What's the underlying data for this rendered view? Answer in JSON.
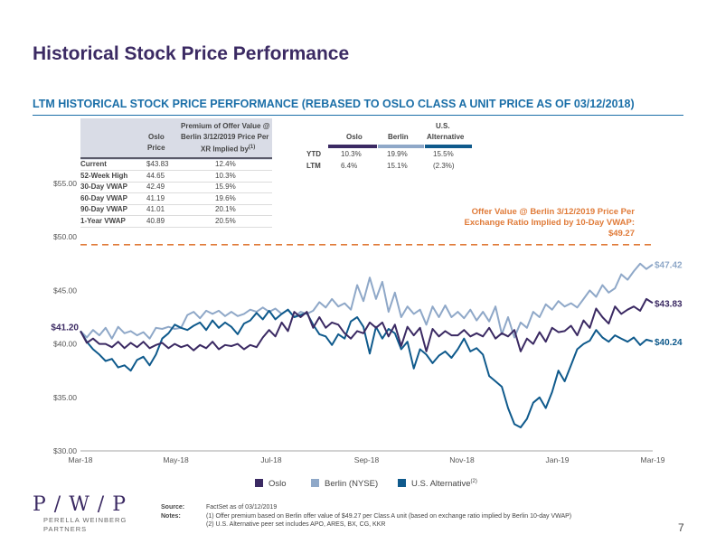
{
  "title": "Historical Stock Price Performance",
  "subtitle": "LTM HISTORICAL STOCK PRICE PERFORMANCE (REBASED TO OSLO CLASS A UNIT PRICE AS OF 03/12/2018)",
  "premium_table": {
    "col_oslo": [
      "Oslo",
      "Price"
    ],
    "col_premium": [
      "Premium of Offer Value @",
      "Berlin 3/12/2019 Price Per",
      "XR Implied by"
    ],
    "col_premium_sup": "(1)",
    "rows": [
      {
        "label": "Current",
        "price": "$43.83",
        "premium": "12.4%"
      },
      {
        "label": "52-Week High",
        "price": "44.65",
        "premium": "10.3%"
      },
      {
        "label": "30-Day VWAP",
        "price": "42.49",
        "premium": "15.9%"
      },
      {
        "label": "60-Day VWAP",
        "price": "41.19",
        "premium": "19.6%"
      },
      {
        "label": "90-Day VWAP",
        "price": "41.01",
        "premium": "20.1%"
      },
      {
        "label": "1-Year VWAP",
        "price": "40.89",
        "premium": "20.5%"
      }
    ]
  },
  "returns_table": {
    "headers": [
      "Oslo",
      "Berlin",
      "U.S.",
      "Alternative"
    ],
    "rows": [
      {
        "label": "YTD",
        "oslo": "10.3%",
        "berlin": "19.9%",
        "alt": "15.5%"
      },
      {
        "label": "LTM",
        "oslo": "6.4%",
        "berlin": "15.1%",
        "alt": "(2.3%)"
      }
    ]
  },
  "offer": {
    "line1": "Offer Value @ Berlin 3/12/2019 Price Per",
    "line2": "Exchange Ratio Implied by 10-Day VWAP:",
    "value_label": "$49.27",
    "value": 49.27
  },
  "legend": {
    "oslo": "Oslo",
    "berlin": "Berlin (NYSE)",
    "alt": "U.S. Alternative",
    "alt_sup": "(2)"
  },
  "colors": {
    "oslo": "#3b2a63",
    "berlin": "#8fa8c8",
    "alt": "#0f5a8c",
    "offer": "#e07b39",
    "title": "#3b2a63",
    "accent": "#1b6fa8"
  },
  "chart_data": {
    "type": "line",
    "x_ticks": [
      "Mar-18",
      "May-18",
      "Jul-18",
      "Sep-18",
      "Nov-18",
      "Jan-19",
      "Mar-19"
    ],
    "y_ticks": [
      "$30.00",
      "$35.00",
      "$40.00",
      "$45.00",
      "$50.00",
      "$55.00"
    ],
    "y_tick_values": [
      30,
      35,
      40,
      45,
      50,
      55
    ],
    "ylim": [
      30,
      55
    ],
    "start_label": "$41.20",
    "start_value": 41.2,
    "end_labels": {
      "berlin": "$47.42",
      "oslo": "$43.83",
      "alt": "$40.24"
    },
    "series": [
      {
        "name": "Oslo",
        "values": [
          41.2,
          40.1,
          40.5,
          40.0,
          40.0,
          39.7,
          40.2,
          39.6,
          40.1,
          39.7,
          40.2,
          39.6,
          39.9,
          40.1,
          39.6,
          40.0,
          39.7,
          39.9,
          39.4,
          39.9,
          39.6,
          40.2,
          39.5,
          39.9,
          39.8,
          40.0,
          39.5,
          39.9,
          39.7,
          40.6,
          41.3,
          40.7,
          42.0,
          41.2,
          43.0,
          42.5,
          43.0,
          41.5,
          42.5,
          41.5,
          42.0,
          41.8,
          41.0,
          40.5,
          41.2,
          41.0,
          42.0,
          41.5,
          42.0,
          40.7,
          41.8,
          39.8,
          41.6,
          40.8,
          41.5,
          39.3,
          41.4,
          40.7,
          41.2,
          40.8,
          40.8,
          41.3,
          40.7,
          41.0,
          40.7,
          41.5,
          40.5,
          41.0,
          40.7,
          41.3,
          39.3,
          40.5,
          40.0,
          41.1,
          40.2,
          41.5,
          41.1,
          41.2,
          41.7,
          40.8,
          42.2,
          41.5,
          43.3,
          42.5,
          41.9,
          43.5,
          42.8,
          43.2,
          43.5,
          43.1,
          44.2,
          43.83
        ]
      },
      {
        "name": "Berlin (NYSE)",
        "values": [
          41.2,
          40.6,
          41.3,
          40.8,
          41.5,
          40.5,
          41.6,
          41.0,
          41.2,
          40.8,
          41.1,
          40.5,
          41.5,
          41.4,
          41.6,
          41.4,
          41.5,
          42.7,
          43.0,
          42.4,
          43.1,
          42.8,
          43.1,
          42.6,
          43.0,
          42.6,
          42.8,
          43.2,
          43.0,
          43.4,
          43.0,
          43.3,
          42.8,
          43.2,
          42.5,
          43.0,
          42.8,
          43.1,
          43.9,
          43.4,
          44.2,
          43.5,
          43.8,
          43.2,
          45.5,
          44.0,
          46.2,
          44.2,
          45.8,
          43.0,
          44.8,
          42.5,
          43.5,
          42.8,
          43.2,
          41.8,
          43.5,
          42.5,
          43.6,
          42.5,
          43.0,
          42.4,
          43.2,
          42.2,
          43.0,
          42.1,
          43.5,
          40.9,
          42.5,
          40.6,
          42.0,
          41.5,
          43.0,
          42.5,
          43.7,
          43.2,
          44.0,
          43.5,
          43.8,
          43.4,
          44.2,
          45.0,
          44.4,
          45.5,
          44.8,
          45.2,
          46.5,
          46.0,
          46.8,
          47.5,
          47.0,
          47.42
        ]
      },
      {
        "name": "U.S. Alternative",
        "values": [
          41.2,
          40.2,
          39.5,
          39.0,
          38.4,
          38.6,
          37.8,
          38.0,
          37.5,
          38.5,
          38.8,
          38.0,
          39.0,
          40.5,
          41.0,
          41.8,
          41.5,
          41.3,
          41.7,
          42.0,
          41.3,
          42.2,
          41.5,
          42.0,
          41.6,
          40.9,
          41.9,
          42.2,
          42.9,
          42.3,
          43.1,
          42.3,
          42.8,
          43.2,
          42.5,
          42.7,
          42.9,
          41.8,
          40.9,
          40.7,
          39.9,
          40.9,
          40.5,
          42.1,
          42.5,
          41.6,
          39.1,
          41.6,
          40.5,
          41.4,
          41.0,
          39.5,
          40.2,
          37.7,
          39.5,
          39.0,
          38.2,
          38.9,
          39.3,
          38.7,
          39.5,
          40.5,
          39.3,
          39.6,
          39.0,
          37.0,
          36.5,
          36.0,
          34.0,
          32.5,
          32.2,
          33.0,
          34.5,
          35.0,
          34.0,
          35.5,
          37.5,
          36.5,
          38.0,
          39.5,
          40.0,
          40.3,
          41.3,
          40.6,
          40.2,
          40.8,
          40.5,
          40.2,
          40.6,
          39.9,
          40.4,
          40.24
        ]
      }
    ]
  },
  "footnotes": {
    "source_key": "Source:",
    "source": "FactSet as of 03/12/2019",
    "notes_key": "Notes:",
    "note1": "(1)  Offer premium based on Berlin offer value of $49.27 per Class A unit (based on exchange ratio implied by Berlin 10-day VWAP)",
    "note2": "(2)  U.S. Alternative peer set includes APO, ARES, BX, CG, KKR"
  },
  "logo": {
    "mark": "P / W / P",
    "line1": "PERELLA WEINBERG",
    "line2": "PARTNERS"
  },
  "page_number": "7"
}
